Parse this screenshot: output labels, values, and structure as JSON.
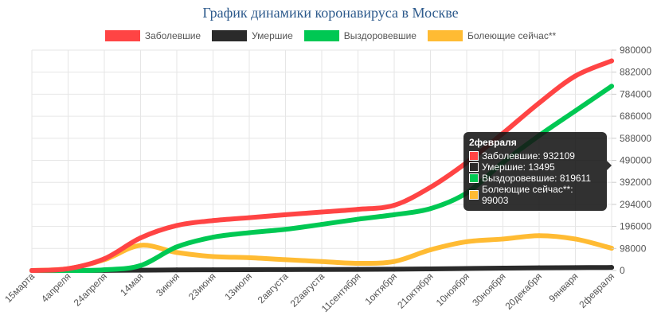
{
  "chart_data": {
    "type": "line",
    "title": "График динамики коронавируса в Москве",
    "categories": [
      "15марта",
      "4апреля",
      "24апреля",
      "14мая",
      "3июня",
      "23июня",
      "13июля",
      "2августа",
      "22августа",
      "11сентября",
      "1октября",
      "21октября",
      "10ноября",
      "30ноября",
      "20декабря",
      "9января",
      "2февраля"
    ],
    "y_axis": {
      "position": "right",
      "min": 0,
      "max": 980000,
      "ticks": [
        "980000",
        "882000",
        "784000",
        "686000",
        "588000",
        "490000",
        "392000",
        "294000",
        "196000",
        "98000",
        "0"
      ]
    },
    "grid": true,
    "legend_position": "top",
    "series": [
      {
        "name": "Заболевшие",
        "color": "#ff4444",
        "values": [
          0,
          8000,
          52000,
          145000,
          200000,
          222000,
          235000,
          248000,
          260000,
          272000,
          290000,
          370000,
          480000,
          610000,
          745000,
          865000,
          932109
        ]
      },
      {
        "name": "Умершие",
        "color": "#2a2a2a",
        "values": [
          0,
          0,
          500,
          1500,
          2600,
          3300,
          3700,
          4100,
          4500,
          5000,
          5800,
          7200,
          8800,
          10400,
          11800,
          12800,
          13495
        ]
      },
      {
        "name": "Выздоровевшие",
        "color": "#00c853",
        "values": [
          0,
          0,
          3000,
          22000,
          105000,
          148000,
          168000,
          183000,
          205000,
          228000,
          248000,
          275000,
          345000,
          480000,
          600000,
          710000,
          819611
        ]
      },
      {
        "name": "Болеющие сейчас**",
        "color": "#ffbb33",
        "values": [
          0,
          8000,
          48000,
          112000,
          80000,
          62000,
          57000,
          48000,
          40000,
          32000,
          40000,
          92000,
          128000,
          140000,
          155000,
          140000,
          99003
        ]
      }
    ],
    "tooltip": {
      "title": "2февраля",
      "rows": [
        "Заболевшие: 932109",
        "Умершие: 13495",
        "Выздоровевшие: 819611",
        "Болеющие сейчас**: 99003"
      ]
    }
  }
}
